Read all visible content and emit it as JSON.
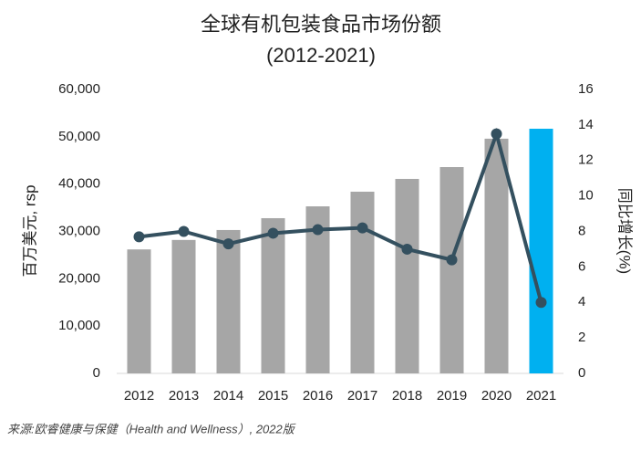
{
  "chart_data": {
    "type": "bar_line",
    "title": "全球有机包装食品市场份额",
    "subtitle": "(2012-2021)",
    "y_label": "百万美元, rsp",
    "y2_label": "同比增长(%)",
    "source": "来源:欧睿健康与保健（Health and Wellness）, 2022版",
    "categories": [
      "2012",
      "2013",
      "2014",
      "2015",
      "2016",
      "2017",
      "2018",
      "2019",
      "2020",
      "2021"
    ],
    "series": [
      {
        "type": "bar",
        "colors": [
          "#a6a6a6",
          "#a6a6a6",
          "#a6a6a6",
          "#a6a6a6",
          "#a6a6a6",
          "#a6a6a6",
          "#a6a6a6",
          "#a6a6a6",
          "#a6a6a6",
          "#00b0f0"
        ],
        "values": [
          26200,
          28200,
          30300,
          32800,
          35300,
          38400,
          41100,
          43600,
          49600,
          51700
        ]
      },
      {
        "type": "line",
        "axis": "y2",
        "color": "#34505f",
        "values": [
          7.7,
          8.0,
          7.3,
          7.9,
          8.1,
          8.2,
          7.0,
          6.4,
          13.5,
          4.0
        ]
      }
    ],
    "ylim": [
      0,
      60000
    ],
    "yticks": [
      0,
      {
        "value": 10000,
        "label": "10,000"
      },
      {
        "value": 20000,
        "label": "20,000"
      },
      {
        "value": 30000,
        "label": "30,000"
      },
      {
        "value": 40000,
        "label": "40,000"
      },
      {
        "value": 50000,
        "label": "50,000"
      },
      {
        "value": 60000,
        "label": "60,000"
      }
    ],
    "y2lim": [
      0,
      16
    ],
    "y2ticks": [
      0,
      2,
      4,
      6,
      8,
      10,
      12,
      14,
      16
    ],
    "grid": false
  }
}
